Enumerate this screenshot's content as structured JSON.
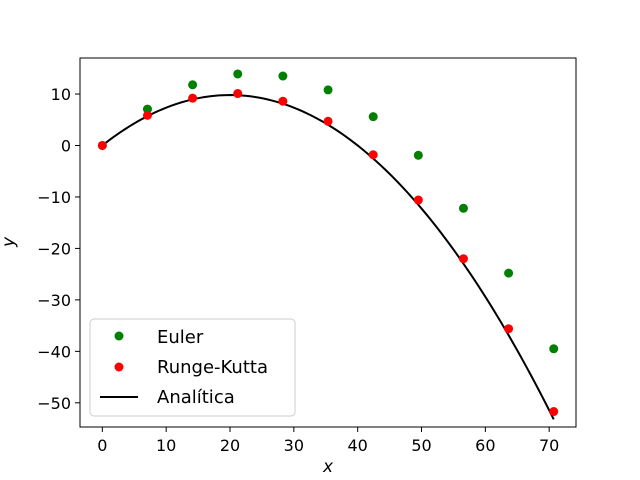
{
  "chart_data": {
    "type": "scatter",
    "title": "",
    "xlabel": "x",
    "ylabel": "y",
    "xlim": [
      -3.5,
      74.2
    ],
    "ylim": [
      -54.7,
      17.0
    ],
    "xticks": [
      0,
      10,
      20,
      30,
      40,
      50,
      60,
      70
    ],
    "yticks": [
      -50,
      -40,
      -30,
      -20,
      -10,
      0,
      10
    ],
    "grid": false,
    "legend_position": "lower-left",
    "series": [
      {
        "name": "Euler",
        "kind": "scatter",
        "color": "#008000",
        "x": [
          0,
          7.07,
          14.14,
          21.21,
          28.28,
          35.36,
          42.43,
          49.5,
          56.57,
          63.64,
          70.71
        ],
        "y": [
          0,
          7.07,
          11.8,
          13.9,
          13.5,
          10.8,
          5.6,
          -1.9,
          -12.2,
          -24.8,
          -39.5
        ]
      },
      {
        "name": "Runge-Kutta",
        "kind": "scatter",
        "color": "#ff0000",
        "x": [
          0,
          7.07,
          14.14,
          21.21,
          28.28,
          35.36,
          42.43,
          49.5,
          56.57,
          63.64,
          70.71
        ],
        "y": [
          0,
          5.85,
          9.2,
          10.1,
          8.6,
          4.7,
          -1.8,
          -10.6,
          -22.0,
          -35.6,
          -51.7
        ]
      },
      {
        "name": "Analítica",
        "kind": "line",
        "color": "#000000",
        "a": 0.98,
        "b": -0.0245
      }
    ]
  }
}
